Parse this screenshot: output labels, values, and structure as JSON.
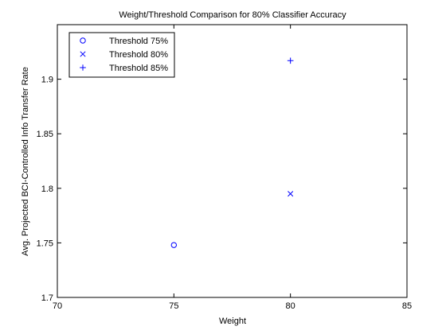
{
  "chart_data": {
    "type": "scatter",
    "title": "Weight/Threshold Comparison for 80% Classifier Accuracy",
    "xlabel": "Weight",
    "ylabel": "Avg. Projected BCI-Controlled Info Transfer Rate",
    "xlim": [
      70,
      85
    ],
    "ylim": [
      1.7,
      1.95
    ],
    "xticks": [
      "70",
      "75",
      "80",
      "85"
    ],
    "yticks": [
      "1.7",
      "1.75",
      "1.8",
      "1.85",
      "1.9"
    ],
    "grid": false,
    "legend_position": "top-left",
    "series": [
      {
        "name": "Threshold 75%",
        "marker": "circle",
        "color": "#0000ff",
        "points": [
          {
            "x": 75,
            "y": 1.748
          }
        ]
      },
      {
        "name": "Threshold 80%",
        "marker": "x",
        "color": "#0000ff",
        "points": [
          {
            "x": 80,
            "y": 1.795
          }
        ]
      },
      {
        "name": "Threshold 85%",
        "marker": "plus",
        "color": "#0000ff",
        "points": [
          {
            "x": 80,
            "y": 1.917
          }
        ]
      }
    ]
  }
}
